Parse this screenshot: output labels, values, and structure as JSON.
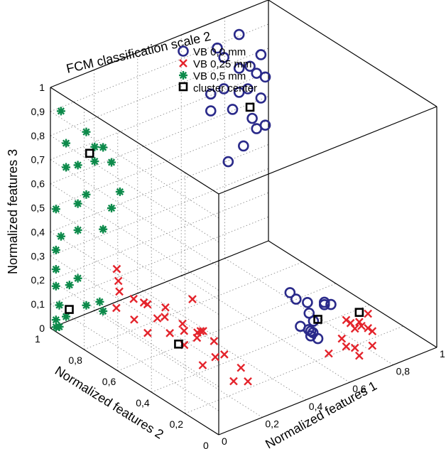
{
  "chart_data": {
    "type": "scatter",
    "title": "FCM classification scale 2",
    "xlabel": "Normalized features 1",
    "ylabel": "Normalized features 2",
    "zlabel": "Normalized features 3",
    "xlim": [
      0,
      1
    ],
    "ylim": [
      0,
      1
    ],
    "zlim": [
      0,
      1
    ],
    "x_ticks": [
      "0",
      "0,2",
      "0,4",
      "0,6",
      "0,8",
      "1"
    ],
    "y_ticks": [
      "0",
      "0,2",
      "0,4",
      "0,6",
      "0,8",
      "1"
    ],
    "z_ticks": [
      "0",
      "0,1",
      "0,2",
      "0,3",
      "0,4",
      "0,5",
      "0,6",
      "0,7",
      "0,8",
      "0,9",
      "1"
    ],
    "grid": true,
    "legend_position": "top-center",
    "series": [
      {
        "name": "VB 0,0 mm",
        "marker": "circle",
        "color": "#2a2a8a",
        "points": [
          [
            0.72,
            0.98,
            0.72
          ],
          [
            0.75,
            0.98,
            0.9
          ],
          [
            0.78,
            0.98,
            0.72
          ],
          [
            0.85,
            0.98,
            0.68
          ],
          [
            0.93,
            0.98,
            0.73
          ],
          [
            0.85,
            0.98,
            0.92
          ],
          [
            0.78,
            0.98,
            0.85
          ],
          [
            0.85,
            0.98,
            0.78
          ],
          [
            0.9,
            0.98,
            0.77
          ],
          [
            0.72,
            0.98,
            0.65
          ],
          [
            0.95,
            0.98,
            0.62
          ],
          [
            0.91,
            0.98,
            0.55
          ],
          [
            0.93,
            0.98,
            0.5
          ],
          [
            0.87,
            0.98,
            0.45
          ],
          [
            0.8,
            0.98,
            0.41
          ],
          [
            0.82,
            0.98,
            0.62
          ],
          [
            0.89,
            0.98,
            0.68
          ],
          [
            0.95,
            0.98,
            0.8
          ],
          [
            0.97,
            0.98,
            0.7
          ],
          [
            0.97,
            0.98,
            0.5
          ],
          [
            0.35,
            0.03,
            0.45
          ],
          [
            0.43,
            0.03,
            0.38
          ],
          [
            0.5,
            0.02,
            0.35
          ],
          [
            0.47,
            0.02,
            0.22
          ],
          [
            0.53,
            0.02,
            0.34
          ],
          [
            0.5,
            0.02,
            0.36
          ],
          [
            0.45,
            0.02,
            0.3
          ],
          [
            0.43,
            0.01,
            0.25
          ],
          [
            0.44,
            0.01,
            0.26
          ],
          [
            0.43,
            0.01,
            0.27
          ],
          [
            0.42,
            0.01,
            0.28
          ],
          [
            0.43,
            0.02,
            0.34
          ],
          [
            0.39,
            0.02,
            0.3
          ],
          [
            0.37,
            0.02,
            0.42
          ]
        ]
      },
      {
        "name": "VB 0,25 mm",
        "marker": "x",
        "color": "#e4232b",
        "points": [
          [
            0.15,
            0.7,
            0.2
          ],
          [
            0.1,
            0.72,
            0.24
          ],
          [
            0.12,
            0.6,
            0.24
          ],
          [
            0.18,
            0.55,
            0.22
          ],
          [
            0.2,
            0.58,
            0.16
          ],
          [
            0.22,
            0.5,
            0.16
          ],
          [
            0.12,
            0.52,
            0.21
          ],
          [
            0.06,
            0.58,
            0.2
          ],
          [
            0.06,
            0.5,
            0.18
          ],
          [
            0.1,
            0.42,
            0.2
          ],
          [
            0.15,
            0.4,
            0.2
          ],
          [
            0.18,
            0.36,
            0.2
          ],
          [
            0.21,
            0.3,
            0.18
          ],
          [
            0.16,
            0.3,
            0.24
          ],
          [
            0.11,
            0.25,
            0.28
          ],
          [
            0.07,
            0.22,
            0.28
          ],
          [
            0.05,
            0.16,
            0.2
          ],
          [
            0.1,
            0.15,
            0.22
          ],
          [
            0.18,
            0.2,
            0.18
          ],
          [
            0.13,
            0.08,
            0.14
          ],
          [
            0.18,
            0.06,
            0.13
          ],
          [
            0.21,
            0.14,
            0.14
          ],
          [
            0.12,
            0.36,
            0.17
          ],
          [
            0.09,
            0.54,
            0.27
          ],
          [
            0.25,
            0.48,
            0.26
          ],
          [
            0.08,
            0.7,
            0.3
          ],
          [
            0.15,
            0.8,
            0.28
          ],
          [
            0.04,
            0.66,
            0.22
          ],
          [
            0.6,
            0.02,
            0.25
          ],
          [
            0.62,
            0.02,
            0.23
          ],
          [
            0.66,
            0.02,
            0.22
          ],
          [
            0.64,
            0.02,
            0.2
          ],
          [
            0.7,
            0.02,
            0.18
          ],
          [
            0.72,
            0.02,
            0.16
          ],
          [
            0.6,
            0.02,
            0.14
          ],
          [
            0.64,
            0.02,
            0.12
          ],
          [
            0.72,
            0.02,
            0.1
          ],
          [
            0.66,
            0.02,
            0.08
          ],
          [
            0.58,
            0.02,
            0.18
          ],
          [
            0.52,
            0.02,
            0.14
          ],
          [
            0.7,
            0.02,
            0.24
          ],
          [
            0.67,
            0.02,
            0.2
          ]
        ]
      },
      {
        "name": "VB 0,5 mm",
        "marker": "asterisk",
        "color": "#0c8a4a",
        "points": [
          [
            0.01,
            0.95,
            0.92
          ],
          [
            0.01,
            0.8,
            0.9
          ],
          [
            0.01,
            0.75,
            0.86
          ],
          [
            0.01,
            0.7,
            0.88
          ],
          [
            0.01,
            0.92,
            0.8
          ],
          [
            0.01,
            0.85,
            0.74
          ],
          [
            0.01,
            0.75,
            0.8
          ],
          [
            0.01,
            0.65,
            0.84
          ],
          [
            0.01,
            0.6,
            0.74
          ],
          [
            0.01,
            0.92,
            0.7
          ],
          [
            0.01,
            0.8,
            0.64
          ],
          [
            0.01,
            0.65,
            0.65
          ],
          [
            0.01,
            0.85,
            0.58
          ],
          [
            0.01,
            0.7,
            0.54
          ],
          [
            0.01,
            0.98,
            0.5
          ],
          [
            0.01,
            0.85,
            0.47
          ],
          [
            0.01,
            0.95,
            0.4
          ],
          [
            0.01,
            0.98,
            0.33
          ],
          [
            0.01,
            0.98,
            0.25
          ],
          [
            0.01,
            0.98,
            0.18
          ],
          [
            0.01,
            0.9,
            0.22
          ],
          [
            0.01,
            0.8,
            0.18
          ],
          [
            0.01,
            0.72,
            0.23
          ],
          [
            0.01,
            0.7,
            0.2
          ],
          [
            0.01,
            0.85,
            0.27
          ],
          [
            0.01,
            0.96,
            0.11
          ],
          [
            0.01,
            0.92,
            0.08
          ],
          [
            0.01,
            0.98,
            0.04
          ],
          [
            0.01,
            0.98,
            0.01
          ],
          [
            0.01,
            0.96,
            0.02
          ]
        ]
      },
      {
        "name": "cluster center",
        "marker": "square",
        "color": "#000000",
        "points": [
          [
            0.01,
            0.78,
            0.82
          ],
          [
            0.9,
            0.98,
            0.6
          ],
          [
            0.47,
            0.02,
            0.3
          ],
          [
            0.66,
            0.02,
            0.26
          ],
          [
            0.14,
            0.42,
            0.14
          ],
          [
            0.04,
            0.94,
            0.09
          ]
        ]
      }
    ]
  }
}
